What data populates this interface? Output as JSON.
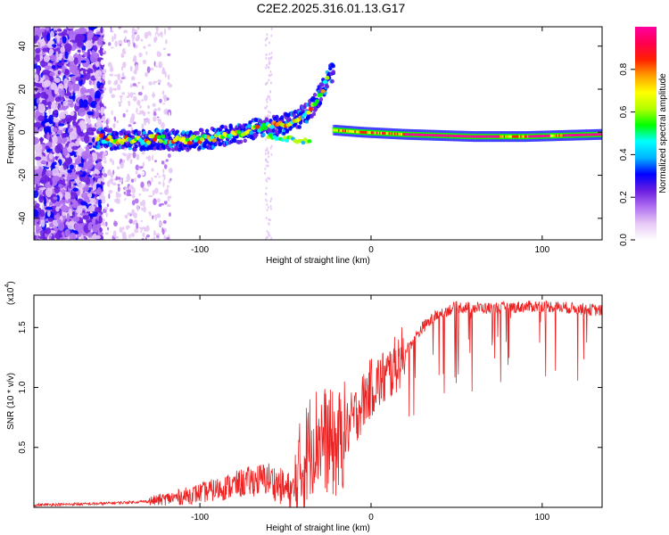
{
  "title": "C2E2.2025.316.01.13.G17",
  "chart_data": [
    {
      "type": "heatmap",
      "name": "spectrogram",
      "xlabel": "Height of straight line (km)",
      "ylabel": "Frequency (Hz)",
      "xlim": [
        -197,
        135
      ],
      "ylim": [
        -50,
        49
      ],
      "xticks": [
        -100,
        0,
        100
      ],
      "yticks": [
        -40,
        -20,
        0,
        20,
        40
      ],
      "ridge": [
        {
          "x": -155,
          "y": -3
        },
        {
          "x": -140,
          "y": -4
        },
        {
          "x": -125,
          "y": -3
        },
        {
          "x": -110,
          "y": -4
        },
        {
          "x": -95,
          "y": -3
        },
        {
          "x": -80,
          "y": -1
        },
        {
          "x": -65,
          "y": 2
        },
        {
          "x": -55,
          "y": 3
        },
        {
          "x": -45,
          "y": 5
        },
        {
          "x": -38,
          "y": 9
        },
        {
          "x": -33,
          "y": 13
        },
        {
          "x": -28,
          "y": 20
        },
        {
          "x": -25,
          "y": 27
        }
      ],
      "lower_branch": [
        {
          "x": -60,
          "y": -2
        },
        {
          "x": -50,
          "y": -3
        },
        {
          "x": -40,
          "y": -4
        },
        {
          "x": -35,
          "y": -5
        }
      ],
      "band": [
        {
          "x": -22,
          "y": 1
        },
        {
          "x": -5,
          "y": 0
        },
        {
          "x": 20,
          "y": -1
        },
        {
          "x": 60,
          "y": -2
        },
        {
          "x": 90,
          "y": -2
        },
        {
          "x": 135,
          "y": -1
        }
      ],
      "colorbar": {
        "label": "Normalized spectral amplitude",
        "range": [
          0,
          1
        ],
        "ticks": [
          0.0,
          0.2,
          0.4,
          0.6,
          0.8
        ],
        "colors": [
          "#ffffff",
          "#e6c8f5",
          "#b070f0",
          "#6a1fe0",
          "#0000ff",
          "#00b4ff",
          "#00ffff",
          "#00ff00",
          "#b4ff00",
          "#ffff00",
          "#ffa000",
          "#ff2000",
          "#ff0050",
          "#ff00a0"
        ]
      }
    },
    {
      "type": "line",
      "name": "snr",
      "xlabel": "Height of straight line (km)",
      "ylabel": "SNR (10 * v/v)",
      "yunit": "(x10",
      "yexp": "4",
      "xlim": [
        -197,
        135
      ],
      "ylim": [
        0,
        1.77
      ],
      "xticks": [
        -100,
        0,
        100
      ],
      "yticks": [
        0.5,
        1.0,
        1.5
      ],
      "color": "#ee2222",
      "trend": [
        {
          "x": -197,
          "y": 0.02
        },
        {
          "x": -160,
          "y": 0.03
        },
        {
          "x": -130,
          "y": 0.05
        },
        {
          "x": -110,
          "y": 0.09
        },
        {
          "x": -90,
          "y": 0.15
        },
        {
          "x": -70,
          "y": 0.22
        },
        {
          "x": -60,
          "y": 0.24
        },
        {
          "x": -50,
          "y": 0.15
        },
        {
          "x": -45,
          "y": 0.12
        },
        {
          "x": -40,
          "y": 0.35
        },
        {
          "x": -35,
          "y": 0.55
        },
        {
          "x": -30,
          "y": 0.6
        },
        {
          "x": -20,
          "y": 0.5
        },
        {
          "x": -10,
          "y": 0.75
        },
        {
          "x": 0,
          "y": 1.0
        },
        {
          "x": 10,
          "y": 1.1
        },
        {
          "x": 20,
          "y": 1.3
        },
        {
          "x": 30,
          "y": 1.5
        },
        {
          "x": 40,
          "y": 1.62
        },
        {
          "x": 50,
          "y": 1.67
        },
        {
          "x": 70,
          "y": 1.66
        },
        {
          "x": 100,
          "y": 1.68
        },
        {
          "x": 120,
          "y": 1.66
        },
        {
          "x": 135,
          "y": 1.64
        }
      ]
    }
  ]
}
